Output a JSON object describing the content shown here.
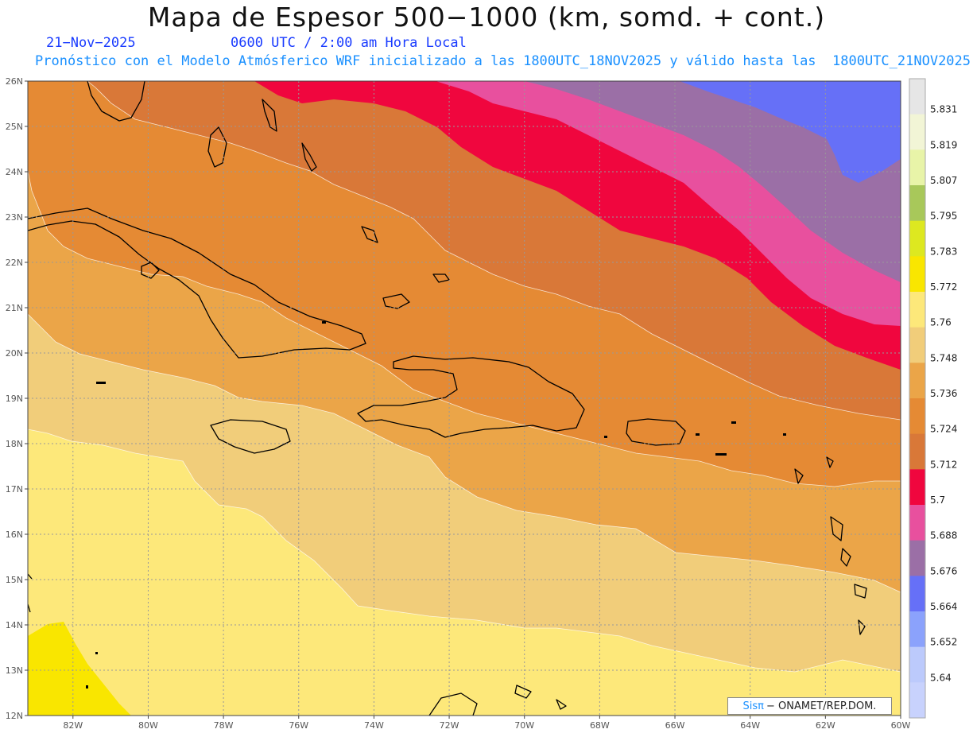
{
  "header": {
    "title": "Mapa de Espesor 500−1000 (km, somd. + cont.)",
    "date": "21−Nov−2025",
    "time": "0600 UTC / 2:00 am Hora Local",
    "description": "Pronóstico con el Modelo Atmósferico WRF inicializado a las 1800UTC_18NOV2025 y válido hasta las  1800UTC_21NOV2025"
  },
  "map": {
    "lat_labels": [
      "26N",
      "25N",
      "24N",
      "23N",
      "22N",
      "21N",
      "20N",
      "19N",
      "18N",
      "17N",
      "16N",
      "15N",
      "14N",
      "13N",
      "12N"
    ],
    "lon_labels": [
      "82W",
      "80W",
      "78W",
      "76W",
      "74W",
      "72W",
      "70W",
      "68W",
      "66W",
      "64W",
      "62W",
      "60W"
    ],
    "lat_range": [
      12,
      26
    ],
    "lon_range": [
      -83.2,
      -60
    ]
  },
  "colorbar": {
    "labels": [
      "5.831",
      "5.819",
      "5.807",
      "5.795",
      "5.783",
      "5.772",
      "5.76",
      "5.748",
      "5.736",
      "5.724",
      "5.712",
      "5.7",
      "5.688",
      "5.676",
      "5.664",
      "5.652",
      "5.64"
    ],
    "colors": [
      "#e6e6e6",
      "#f2f5d6",
      "#e8f4a8",
      "#a8c85a",
      "#dde820",
      "#f9e600",
      "#fde87a",
      "#f1cd7a",
      "#eba548",
      "#e58a34",
      "#d97838",
      "#f0063e",
      "#e8509e",
      "#9b6fa6",
      "#6670f7",
      "#8ba2fc",
      "#bccafc"
    ]
  },
  "credit": {
    "logo": "Sisπ",
    "text": "− ONAMET/REP.DOM."
  }
}
